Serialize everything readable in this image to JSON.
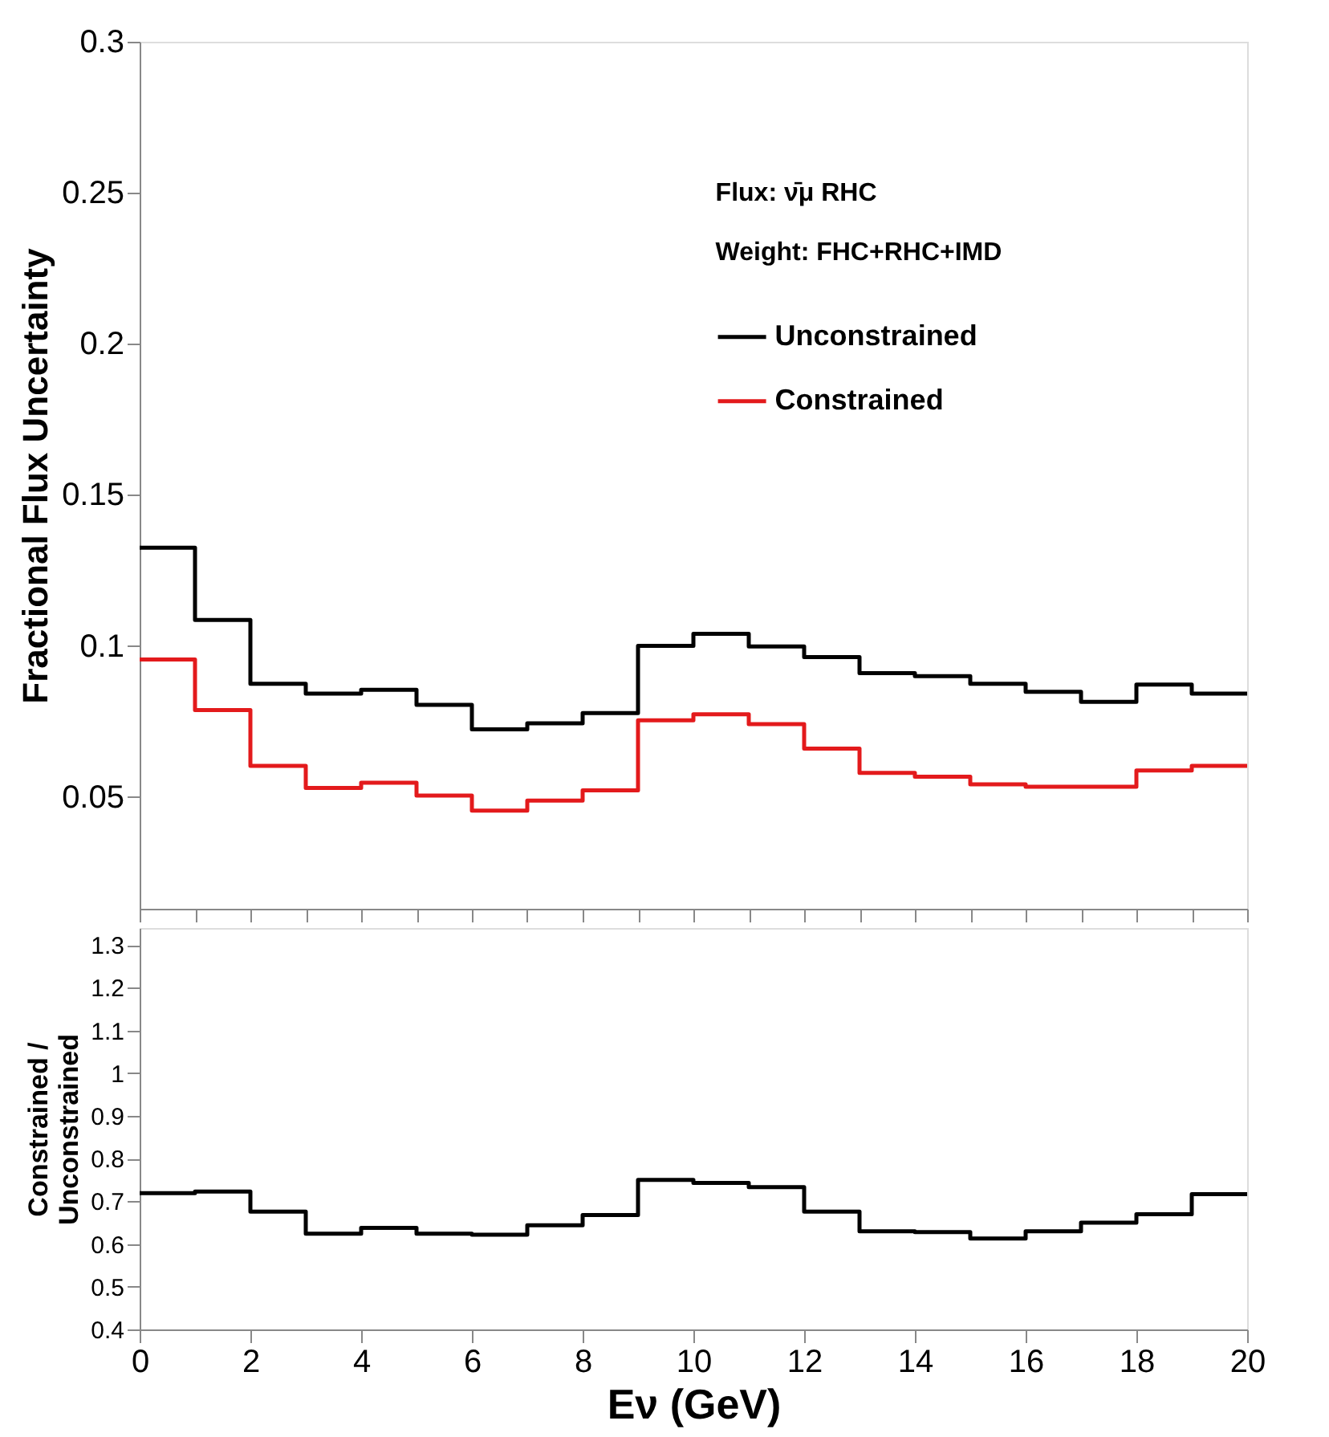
{
  "chart_data": [
    {
      "type": "histogram",
      "ylabel": "Fractional Flux Uncertainty",
      "bins": [
        0,
        1,
        2,
        3,
        4,
        5,
        6,
        7,
        8,
        9,
        10,
        11,
        12,
        13,
        14,
        15,
        16,
        17,
        18,
        19,
        20
      ],
      "series": [
        {
          "name": "Unconstrained",
          "color": "#000000",
          "values": [
            0.1325,
            0.1086,
            0.0875,
            0.0842,
            0.0855,
            0.0805,
            0.0724,
            0.0744,
            0.0778,
            0.1,
            0.104,
            0.0998,
            0.0963,
            0.091,
            0.09,
            0.0875,
            0.0848,
            0.0815,
            0.0872,
            0.0842
          ]
        },
        {
          "name": "Constrained",
          "color": "#e31a1c",
          "values": [
            0.0955,
            0.0788,
            0.0603,
            0.053,
            0.0547,
            0.0505,
            0.0455,
            0.0488,
            0.0522,
            0.0754,
            0.0774,
            0.0741,
            0.066,
            0.058,
            0.0567,
            0.0542,
            0.0534,
            0.0534,
            0.0588,
            0.0603
          ]
        }
      ],
      "annotations": [
        "Flux: ν̄μ RHC",
        "Weight: FHC+RHC+IMD"
      ],
      "xlim": [
        0,
        20
      ],
      "ylim": [
        0.013,
        0.3
      ],
      "yticks": [
        0.05,
        0.1,
        0.15,
        0.2,
        0.25,
        0.3
      ],
      "legend": "top right",
      "tick_labels": "y",
      "grid": false
    },
    {
      "type": "histogram",
      "xlabel": "Eν (GeV)",
      "ylabel": "Constrained / Unconstrained",
      "bins": [
        0,
        1,
        2,
        3,
        4,
        5,
        6,
        7,
        8,
        9,
        10,
        11,
        12,
        13,
        14,
        15,
        16,
        17,
        18,
        19,
        20
      ],
      "series": [
        {
          "color": "#000000",
          "values": [
            0.719,
            0.723,
            0.676,
            0.624,
            0.638,
            0.624,
            0.622,
            0.644,
            0.668,
            0.75,
            0.743,
            0.733,
            0.676,
            0.63,
            0.628,
            0.613,
            0.63,
            0.65,
            0.67,
            0.717
          ]
        }
      ],
      "xlim": [
        0,
        20
      ],
      "ylim": [
        0.4,
        1.34
      ],
      "xticks": [
        0,
        2,
        4,
        6,
        8,
        10,
        12,
        14,
        16,
        18,
        20
      ],
      "yticks": [
        0.4,
        0.5,
        0.6,
        0.7,
        0.8,
        0.9,
        1,
        1.1,
        1.2,
        1.3
      ],
      "legend": false,
      "grid": false
    }
  ]
}
